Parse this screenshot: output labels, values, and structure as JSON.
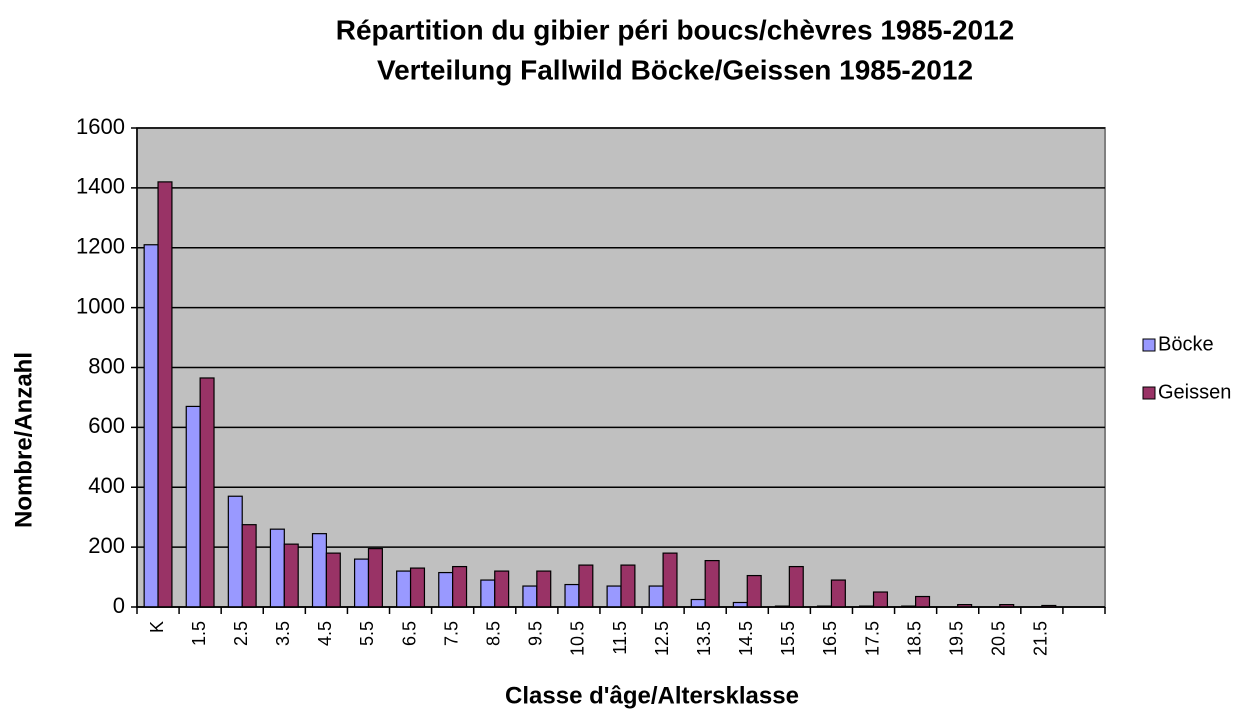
{
  "chart_data": {
    "type": "bar",
    "title": [
      "Répartition du gibier péri boucs/chèvres 1985-2012",
      "Verteilung Fallwild Böcke/Geissen 1985-2012"
    ],
    "x_label": "Classe d'âge/Altersklasse",
    "y_label": "Nombre/Anzahl",
    "categories": [
      "K",
      "1.5",
      "2.5",
      "3.5",
      "4.5",
      "5.5",
      "6.5",
      "7.5",
      "8.5",
      "9.5",
      "10.5",
      "11.5",
      "12.5",
      "13.5",
      "14.5",
      "15.5",
      "16.5",
      "17.5",
      "18.5",
      "19.5",
      "20.5",
      "21.5",
      null
    ],
    "series": [
      {
        "name": "Böcke",
        "color": "#9999ff",
        "values": [
          1210,
          670,
          370,
          260,
          245,
          160,
          120,
          115,
          90,
          70,
          75,
          70,
          70,
          25,
          15,
          3,
          3,
          3,
          3,
          0,
          0,
          0,
          null
        ]
      },
      {
        "name": "Geissen",
        "color": "#993366",
        "values": [
          1420,
          765,
          275,
          210,
          180,
          195,
          130,
          135,
          120,
          120,
          140,
          140,
          180,
          155,
          105,
          135,
          90,
          50,
          35,
          8,
          8,
          5,
          null
        ]
      }
    ],
    "ylim": [
      0,
      1600
    ],
    "yticks": [
      0,
      200,
      400,
      600,
      800,
      1000,
      1200,
      1400,
      1600
    ],
    "grid": true,
    "legend": "right",
    "plot_background": "#c0c0c0"
  }
}
